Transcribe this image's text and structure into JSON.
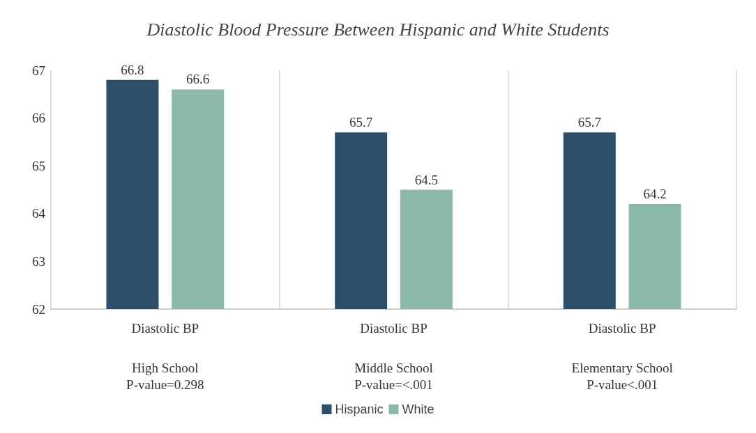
{
  "chart_data": {
    "type": "bar",
    "title": "Diastolic Blood Pressure Between Hispanic and White Students",
    "categories": [
      "Diastolic BP",
      "Diastolic BP",
      "Diastolic BP"
    ],
    "series": [
      {
        "name": "Hispanic",
        "color": "#2d4f6a",
        "values": [
          66.8,
          65.7,
          65.7
        ]
      },
      {
        "name": "White",
        "color": "#8bb8a8",
        "values": [
          66.6,
          64.5,
          64.2
        ]
      }
    ],
    "annotations": [
      "High School\nP-value=0.298",
      "Middle School\nP-value=<.001",
      "Elementary School\nP-value<.001"
    ],
    "ylim": [
      62,
      67
    ],
    "yticks": [
      62,
      63,
      64,
      65,
      66,
      67
    ],
    "grid": "x",
    "legend": "bottom",
    "data_labels": true
  }
}
